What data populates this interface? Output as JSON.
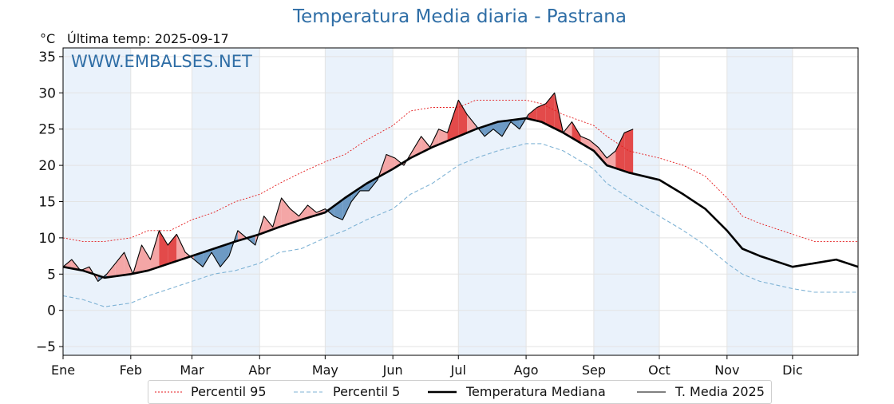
{
  "title": "Temperatura Media diaria - Pastrana",
  "unit_label": "°C",
  "last_temp_label": "Última temp: 2025-09-17",
  "watermark": "WWW.EMBALSES.NET",
  "colors": {
    "title": "#2f6ea6",
    "p95": "#e41a1c",
    "p5": "#7fb3d5",
    "median": "#000000",
    "current": "#000000",
    "warm_fill": "#f4a6a6",
    "warm_fill_strong": "#e34a4a",
    "cold_fill": "#6d9ac4",
    "cold_fill_strong": "#1f5f9e",
    "band": "#eaf2fb"
  },
  "chart_data": {
    "type": "line",
    "xlabel": "",
    "ylabel": "°C",
    "x_tick_labels": [
      "Ene",
      "Feb",
      "Mar",
      "Abr",
      "May",
      "Jun",
      "Jul",
      "Ago",
      "Sep",
      "Oct",
      "Nov",
      "Dic"
    ],
    "x_tick_days": [
      1,
      32,
      60,
      91,
      121,
      152,
      182,
      213,
      244,
      274,
      305,
      335
    ],
    "xlim": [
      1,
      365
    ],
    "ylim": [
      -6.2,
      36.2
    ],
    "y_ticks": [
      35,
      30,
      25,
      20,
      15,
      10,
      5,
      0,
      -5
    ],
    "y_tick_labels": [
      "35",
      "30",
      "25",
      "20",
      "15",
      "10",
      "5",
      "0",
      "−5"
    ],
    "grid": true,
    "legend_position": "bottom-center",
    "series": [
      {
        "name": "Percentil 95",
        "style": "dotted",
        "points": [
          [
            1,
            10
          ],
          [
            10,
            9.5
          ],
          [
            20,
            9.5
          ],
          [
            32,
            10
          ],
          [
            40,
            11
          ],
          [
            50,
            11
          ],
          [
            60,
            12.5
          ],
          [
            70,
            13.5
          ],
          [
            80,
            15
          ],
          [
            91,
            16
          ],
          [
            100,
            17.5
          ],
          [
            110,
            19
          ],
          [
            121,
            20.5
          ],
          [
            130,
            21.5
          ],
          [
            140,
            23.5
          ],
          [
            152,
            25.5
          ],
          [
            160,
            27.5
          ],
          [
            170,
            28
          ],
          [
            182,
            28
          ],
          [
            190,
            29
          ],
          [
            200,
            29
          ],
          [
            213,
            29
          ],
          [
            220,
            28.5
          ],
          [
            230,
            27
          ],
          [
            244,
            25.5
          ],
          [
            250,
            24
          ],
          [
            260,
            22
          ],
          [
            274,
            21
          ],
          [
            285,
            20
          ],
          [
            295,
            18.5
          ],
          [
            305,
            15.5
          ],
          [
            312,
            13
          ],
          [
            320,
            12
          ],
          [
            335,
            10.5
          ],
          [
            345,
            9.5
          ],
          [
            355,
            9.5
          ],
          [
            365,
            9.5
          ]
        ]
      },
      {
        "name": "Percentil 5",
        "style": "dashed",
        "points": [
          [
            1,
            2
          ],
          [
            10,
            1.5
          ],
          [
            20,
            0.5
          ],
          [
            32,
            1
          ],
          [
            40,
            2
          ],
          [
            50,
            3
          ],
          [
            60,
            4
          ],
          [
            70,
            5
          ],
          [
            80,
            5.5
          ],
          [
            91,
            6.5
          ],
          [
            100,
            8
          ],
          [
            110,
            8.5
          ],
          [
            121,
            10
          ],
          [
            130,
            11
          ],
          [
            140,
            12.5
          ],
          [
            152,
            14
          ],
          [
            160,
            16
          ],
          [
            170,
            17.5
          ],
          [
            182,
            20
          ],
          [
            190,
            21
          ],
          [
            200,
            22
          ],
          [
            213,
            23
          ],
          [
            220,
            23
          ],
          [
            230,
            22
          ],
          [
            244,
            19.5
          ],
          [
            250,
            17.5
          ],
          [
            260,
            15.5
          ],
          [
            274,
            13
          ],
          [
            285,
            11
          ],
          [
            295,
            9
          ],
          [
            305,
            6.5
          ],
          [
            312,
            5
          ],
          [
            320,
            4
          ],
          [
            335,
            3
          ],
          [
            345,
            2.5
          ],
          [
            355,
            2.5
          ],
          [
            365,
            2.5
          ]
        ]
      },
      {
        "name": "Temperatura Mediana",
        "style": "solid-thick",
        "points": [
          [
            1,
            6
          ],
          [
            10,
            5.5
          ],
          [
            20,
            4.5
          ],
          [
            32,
            5
          ],
          [
            40,
            5.5
          ],
          [
            50,
            6.5
          ],
          [
            60,
            7.5
          ],
          [
            70,
            8.5
          ],
          [
            80,
            9.5
          ],
          [
            91,
            10.5
          ],
          [
            100,
            11.5
          ],
          [
            110,
            12.5
          ],
          [
            121,
            13.5
          ],
          [
            130,
            15.5
          ],
          [
            140,
            17.5
          ],
          [
            152,
            19.5
          ],
          [
            160,
            21
          ],
          [
            170,
            22.5
          ],
          [
            182,
            24
          ],
          [
            190,
            25
          ],
          [
            200,
            26
          ],
          [
            213,
            26.5
          ],
          [
            220,
            26
          ],
          [
            230,
            24.5
          ],
          [
            244,
            22
          ],
          [
            250,
            20
          ],
          [
            260,
            19
          ],
          [
            274,
            18
          ],
          [
            285,
            16
          ],
          [
            295,
            14
          ],
          [
            305,
            11
          ],
          [
            312,
            8.5
          ],
          [
            320,
            7.5
          ],
          [
            335,
            6
          ],
          [
            345,
            6.5
          ],
          [
            355,
            7
          ],
          [
            365,
            6
          ]
        ]
      },
      {
        "name": "T. Media 2025",
        "style": "solid-thin",
        "points": [
          [
            1,
            6
          ],
          [
            5,
            7
          ],
          [
            9,
            5.5
          ],
          [
            13,
            6
          ],
          [
            17,
            4
          ],
          [
            21,
            5
          ],
          [
            25,
            6.5
          ],
          [
            29,
            8
          ],
          [
            33,
            5
          ],
          [
            37,
            9
          ],
          [
            41,
            7
          ],
          [
            45,
            11
          ],
          [
            49,
            9
          ],
          [
            53,
            10.5
          ],
          [
            57,
            8
          ],
          [
            61,
            7
          ],
          [
            65,
            6
          ],
          [
            69,
            8
          ],
          [
            73,
            6
          ],
          [
            77,
            7.5
          ],
          [
            81,
            11
          ],
          [
            85,
            10
          ],
          [
            89,
            9
          ],
          [
            93,
            13
          ],
          [
            97,
            11.5
          ],
          [
            101,
            15.5
          ],
          [
            105,
            14
          ],
          [
            109,
            13
          ],
          [
            113,
            14.5
          ],
          [
            117,
            13.5
          ],
          [
            121,
            14
          ],
          [
            125,
            13
          ],
          [
            129,
            12.5
          ],
          [
            133,
            15
          ],
          [
            137,
            16.5
          ],
          [
            141,
            16.5
          ],
          [
            145,
            18
          ],
          [
            149,
            21.5
          ],
          [
            153,
            21
          ],
          [
            157,
            20
          ],
          [
            161,
            22
          ],
          [
            165,
            24
          ],
          [
            169,
            22.5
          ],
          [
            173,
            25
          ],
          [
            177,
            24.5
          ],
          [
            182,
            29
          ],
          [
            186,
            27
          ],
          [
            190,
            25.5
          ],
          [
            194,
            24
          ],
          [
            198,
            25
          ],
          [
            202,
            24
          ],
          [
            206,
            26
          ],
          [
            210,
            25
          ],
          [
            214,
            27
          ],
          [
            218,
            28
          ],
          [
            222,
            28.5
          ],
          [
            226,
            30
          ],
          [
            230,
            24.5
          ],
          [
            234,
            26
          ],
          [
            238,
            24
          ],
          [
            242,
            23.5
          ],
          [
            246,
            22.5
          ],
          [
            250,
            21
          ],
          [
            254,
            22
          ],
          [
            258,
            24.5
          ],
          [
            262,
            25
          ]
        ]
      }
    ]
  },
  "legend": {
    "p95": "Percentil 95",
    "p5": "Percentil 5",
    "median": "Temperatura Mediana",
    "current": "T. Media 2025"
  }
}
